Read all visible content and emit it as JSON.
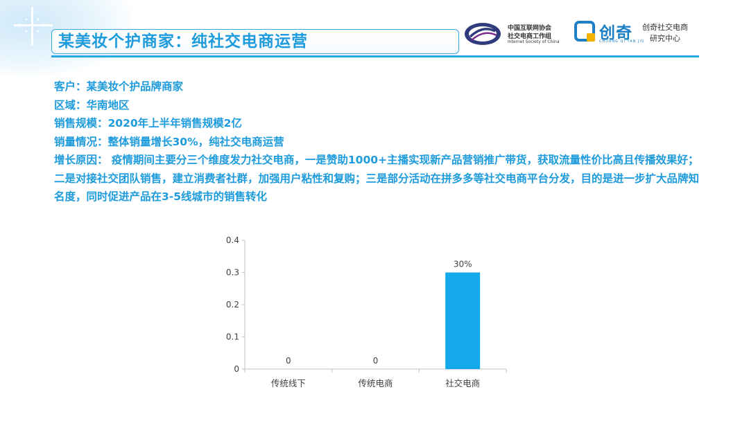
{
  "header": {
    "title": "某美妆个护商家：纯社交电商运营",
    "logo_isc": {
      "line1": "中国互联网协会",
      "line2": "社交电商工作组",
      "en": "Internet Society of China"
    },
    "logo_chuangqi": {
      "name": "创奇",
      "pinyin": "CHUANG QI YAN JIU",
      "line1": "创奇社交电商",
      "line2": "研究中心"
    }
  },
  "content": {
    "customer": "客户：某美妆个护品牌商家",
    "region": "区域：华南地区",
    "sales_scale": "销售规模：2020年上半年销售规模2亿",
    "volume": "销量情况：整体销量增长30%，纯社交电商运营",
    "reason": "增长原因： 疫情期间主要分三个维度发力社交电商，一是赞助1000+主播实现新产品营销推广带货，获取流量性价比高且传播效果好；二是对接社交团队销售，建立消费者社群，加强用户粘性和复购；三是部分活动在拼多多等社交电商平台分发，目的是进一步扩大品牌知名度，同时促进产品在3-5线城市的销售转化"
  },
  "chart_data": {
    "type": "bar",
    "categories": [
      "传统线下",
      "传统电商",
      "社交电商"
    ],
    "values": [
      0,
      0,
      0.3
    ],
    "data_labels": [
      "0",
      "0",
      "30%"
    ],
    "yticks": [
      "0",
      "0.1",
      "0.2",
      "0.3",
      "0.4"
    ],
    "ylim": [
      0,
      0.4
    ],
    "grid": false,
    "bar_color": "#14a9ea"
  },
  "colors": {
    "accent": "#1d9bdc"
  }
}
